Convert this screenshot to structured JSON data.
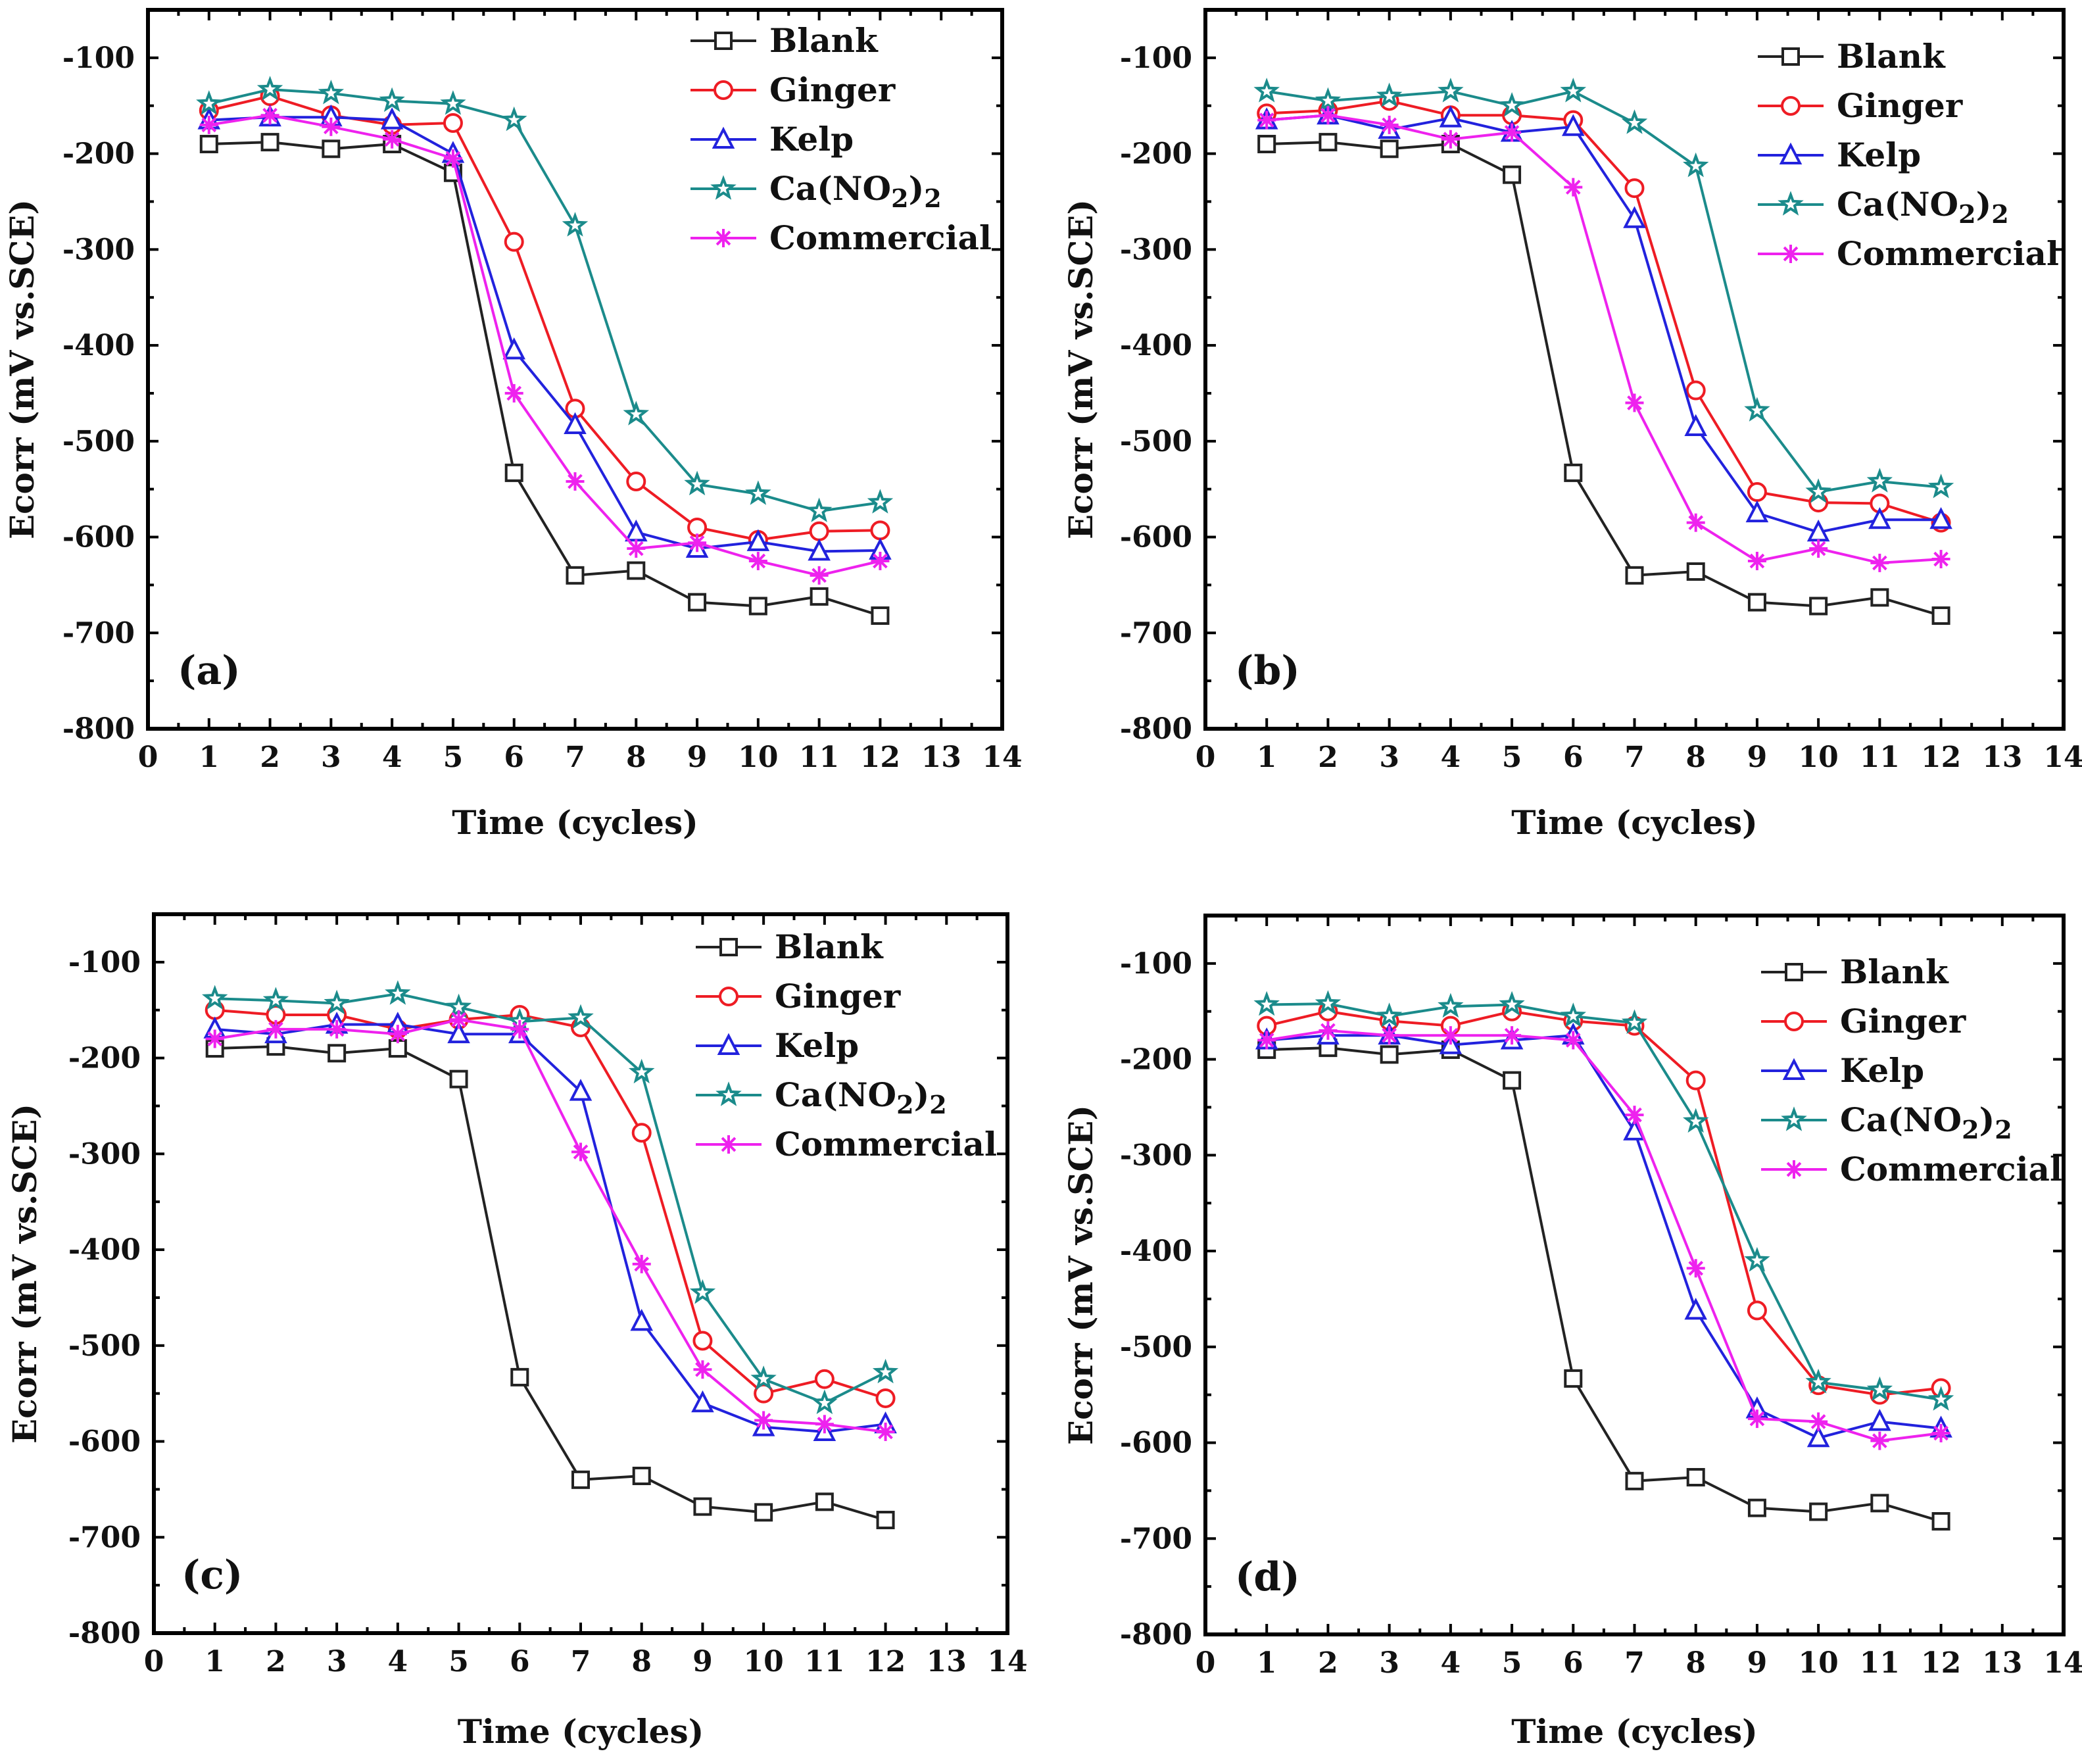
{
  "figure": {
    "background": "#ffffff"
  },
  "chart_data": [
    {
      "type": "line",
      "panel_label": "(a)",
      "xlabel": "Time (cycles)",
      "ylabel": "Ecorr (mV vs.SCE)",
      "xlim": [
        0,
        14
      ],
      "ylim": [
        -800,
        -50
      ],
      "xticks": [
        0,
        1,
        2,
        3,
        4,
        5,
        6,
        7,
        8,
        9,
        10,
        11,
        12,
        13,
        14
      ],
      "yticks": [
        -800,
        -700,
        -600,
        -500,
        -400,
        -300,
        -200,
        -100
      ],
      "legend_position": "top-right",
      "x": [
        1,
        2,
        3,
        4,
        5,
        6,
        7,
        8,
        9,
        10,
        11,
        12
      ],
      "series": [
        {
          "name": "Blank",
          "label_parts": [
            "Blank"
          ],
          "color": "#222222",
          "marker": "square",
          "values": [
            -190,
            -188,
            -195,
            -190,
            -220,
            -533,
            -640,
            -635,
            -668,
            -672,
            -662,
            -682
          ]
        },
        {
          "name": "Ginger",
          "label_parts": [
            "Ginger"
          ],
          "color": "#ee1c24",
          "marker": "circle",
          "values": [
            -155,
            -140,
            -160,
            -170,
            -168,
            -292,
            -466,
            -542,
            -590,
            -603,
            -594,
            -593
          ]
        },
        {
          "name": "Kelp",
          "label_parts": [
            "Kelp"
          ],
          "color": "#2222dd",
          "marker": "triangle",
          "values": [
            -165,
            -162,
            -162,
            -165,
            -200,
            -405,
            -483,
            -595,
            -612,
            -605,
            -615,
            -614
          ]
        },
        {
          "name": "Ca(NO2)2",
          "label_parts": [
            "Ca(NO",
            "2",
            ")",
            "2"
          ],
          "color": "#1b8b8b",
          "marker": "star",
          "values": [
            -148,
            -133,
            -137,
            -145,
            -148,
            -165,
            -275,
            -472,
            -545,
            -555,
            -573,
            -564
          ]
        },
        {
          "name": "Commercial",
          "label_parts": [
            "Commercial"
          ],
          "color": "#ee22ee",
          "marker": "asterisk",
          "values": [
            -170,
            -160,
            -172,
            -185,
            -205,
            -450,
            -542,
            -612,
            -606,
            -625,
            -640,
            -625
          ]
        }
      ]
    },
    {
      "type": "line",
      "panel_label": "(b)",
      "xlabel": "Time (cycles)",
      "ylabel": "Ecorr (mV vs.SCE)",
      "xlim": [
        0,
        14
      ],
      "ylim": [
        -800,
        -50
      ],
      "xticks": [
        0,
        1,
        2,
        3,
        4,
        5,
        6,
        7,
        8,
        9,
        10,
        11,
        12,
        13,
        14
      ],
      "yticks": [
        -800,
        -700,
        -600,
        -500,
        -400,
        -300,
        -200,
        -100
      ],
      "legend_position": "top-right",
      "x": [
        1,
        2,
        3,
        4,
        5,
        6,
        7,
        8,
        9,
        10,
        11,
        12
      ],
      "series": [
        {
          "name": "Blank",
          "label_parts": [
            "Blank"
          ],
          "color": "#222222",
          "marker": "square",
          "values": [
            -190,
            -188,
            -195,
            -190,
            -222,
            -533,
            -640,
            -636,
            -668,
            -672,
            -663,
            -682
          ]
        },
        {
          "name": "Ginger",
          "label_parts": [
            "Ginger"
          ],
          "color": "#ee1c24",
          "marker": "circle",
          "values": [
            -158,
            -155,
            -145,
            -160,
            -160,
            -165,
            -236,
            -447,
            -553,
            -564,
            -565,
            -585
          ]
        },
        {
          "name": "Kelp",
          "label_parts": [
            "Kelp"
          ],
          "color": "#2222dd",
          "marker": "triangle",
          "values": [
            -165,
            -160,
            -175,
            -163,
            -178,
            -172,
            -268,
            -485,
            -575,
            -595,
            -582,
            -582
          ]
        },
        {
          "name": "Ca(NO2)2",
          "label_parts": [
            "Ca(NO",
            "2",
            ")",
            "2"
          ],
          "color": "#1b8b8b",
          "marker": "star",
          "values": [
            -135,
            -145,
            -140,
            -135,
            -150,
            -135,
            -168,
            -213,
            -468,
            -553,
            -542,
            -548
          ]
        },
        {
          "name": "Commercial",
          "label_parts": [
            "Commercial"
          ],
          "color": "#ee22ee",
          "marker": "asterisk",
          "values": [
            -165,
            -160,
            -170,
            -185,
            -178,
            -235,
            -460,
            -585,
            -625,
            -612,
            -627,
            -623
          ]
        }
      ]
    },
    {
      "type": "line",
      "panel_label": "(c)",
      "xlabel": "Time (cycles)",
      "ylabel": "Ecorr (mV vs.SCE)",
      "xlim": [
        0,
        14
      ],
      "ylim": [
        -800,
        -50
      ],
      "xticks": [
        0,
        1,
        2,
        3,
        4,
        5,
        6,
        7,
        8,
        9,
        10,
        11,
        12,
        13,
        14
      ],
      "yticks": [
        -800,
        -700,
        -600,
        -500,
        -400,
        -300,
        -200,
        -100
      ],
      "legend_position": "top-right",
      "x": [
        1,
        2,
        3,
        4,
        5,
        6,
        7,
        8,
        9,
        10,
        11,
        12
      ],
      "series": [
        {
          "name": "Blank",
          "label_parts": [
            "Blank"
          ],
          "color": "#222222",
          "marker": "square",
          "values": [
            -190,
            -188,
            -195,
            -190,
            -222,
            -533,
            -640,
            -636,
            -668,
            -674,
            -663,
            -682
          ]
        },
        {
          "name": "Ginger",
          "label_parts": [
            "Ginger"
          ],
          "color": "#ee1c24",
          "marker": "circle",
          "values": [
            -150,
            -155,
            -155,
            -170,
            -160,
            -155,
            -168,
            -278,
            -495,
            -550,
            -535,
            -555
          ]
        },
        {
          "name": "Kelp",
          "label_parts": [
            "Kelp"
          ],
          "color": "#2222dd",
          "marker": "triangle",
          "values": [
            -170,
            -175,
            -165,
            -165,
            -175,
            -175,
            -235,
            -475,
            -560,
            -585,
            -590,
            -582
          ]
        },
        {
          "name": "Ca(NO2)2",
          "label_parts": [
            "Ca(NO",
            "2",
            ")",
            "2"
          ],
          "color": "#1b8b8b",
          "marker": "star",
          "values": [
            -138,
            -140,
            -143,
            -133,
            -147,
            -162,
            -158,
            -215,
            -445,
            -535,
            -560,
            -528
          ]
        },
        {
          "name": "Commercial",
          "label_parts": [
            "Commercial"
          ],
          "color": "#ee22ee",
          "marker": "asterisk",
          "values": [
            -180,
            -170,
            -170,
            -175,
            -160,
            -170,
            -298,
            -415,
            -525,
            -578,
            -582,
            -590
          ]
        }
      ]
    },
    {
      "type": "line",
      "panel_label": "(d)",
      "xlabel": "Time (cycles)",
      "ylabel": "Ecorr (mV vs.SCE)",
      "xlim": [
        0,
        14
      ],
      "ylim": [
        -800,
        -50
      ],
      "xticks": [
        0,
        1,
        2,
        3,
        4,
        5,
        6,
        7,
        8,
        9,
        10,
        11,
        12,
        13,
        14
      ],
      "yticks": [
        -800,
        -700,
        -600,
        -500,
        -400,
        -300,
        -200,
        -100
      ],
      "legend_position": "top-right",
      "x": [
        1,
        2,
        3,
        4,
        5,
        6,
        7,
        8,
        9,
        10,
        11,
        12
      ],
      "series": [
        {
          "name": "Blank",
          "label_parts": [
            "Blank"
          ],
          "color": "#222222",
          "marker": "square",
          "values": [
            -190,
            -188,
            -195,
            -190,
            -222,
            -533,
            -640,
            -636,
            -668,
            -672,
            -663,
            -682
          ]
        },
        {
          "name": "Ginger",
          "label_parts": [
            "Ginger"
          ],
          "color": "#ee1c24",
          "marker": "circle",
          "values": [
            -165,
            -150,
            -160,
            -165,
            -150,
            -160,
            -165,
            -222,
            -462,
            -540,
            -550,
            -543
          ]
        },
        {
          "name": "Kelp",
          "label_parts": [
            "Kelp"
          ],
          "color": "#2222dd",
          "marker": "triangle",
          "values": [
            -180,
            -175,
            -175,
            -185,
            -180,
            -175,
            -275,
            -462,
            -565,
            -595,
            -578,
            -585
          ]
        },
        {
          "name": "Ca(NO2)2",
          "label_parts": [
            "Ca(NO",
            "2",
            ")",
            "2"
          ],
          "color": "#1b8b8b",
          "marker": "star",
          "values": [
            -143,
            -142,
            -155,
            -145,
            -143,
            -155,
            -162,
            -265,
            -410,
            -537,
            -545,
            -555
          ]
        },
        {
          "name": "Commercial",
          "label_parts": [
            "Commercial"
          ],
          "color": "#ee22ee",
          "marker": "asterisk",
          "values": [
            -180,
            -170,
            -175,
            -175,
            -175,
            -180,
            -258,
            -418,
            -575,
            -578,
            -598,
            -590
          ]
        }
      ]
    }
  ]
}
